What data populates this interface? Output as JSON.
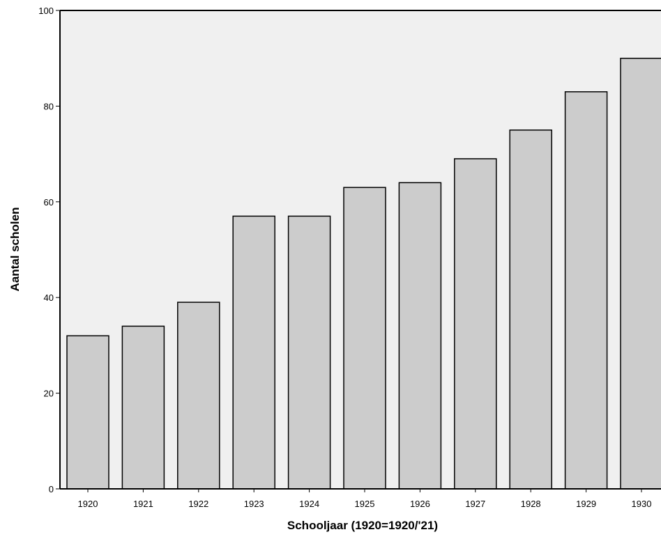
{
  "chart_data": {
    "type": "bar",
    "title": "",
    "xlabel": "Schooljaar (1920=1920/'21)",
    "ylabel": "Aantal scholen",
    "categories": [
      "1920",
      "1921",
      "1922",
      "1923",
      "1924",
      "1925",
      "1926",
      "1927",
      "1928",
      "1929",
      "1930"
    ],
    "values": [
      32,
      34,
      39,
      57,
      57,
      63,
      64,
      69,
      75,
      83,
      90
    ],
    "ylim": [
      0,
      100
    ],
    "yticks": [
      "0",
      "20",
      "40",
      "60",
      "80",
      "100"
    ],
    "grid": false,
    "colors": {
      "plot_background": "#f0f0f0",
      "bar_fill": "#cccccc",
      "bar_stroke": "#000000",
      "axis": "#000000"
    }
  }
}
